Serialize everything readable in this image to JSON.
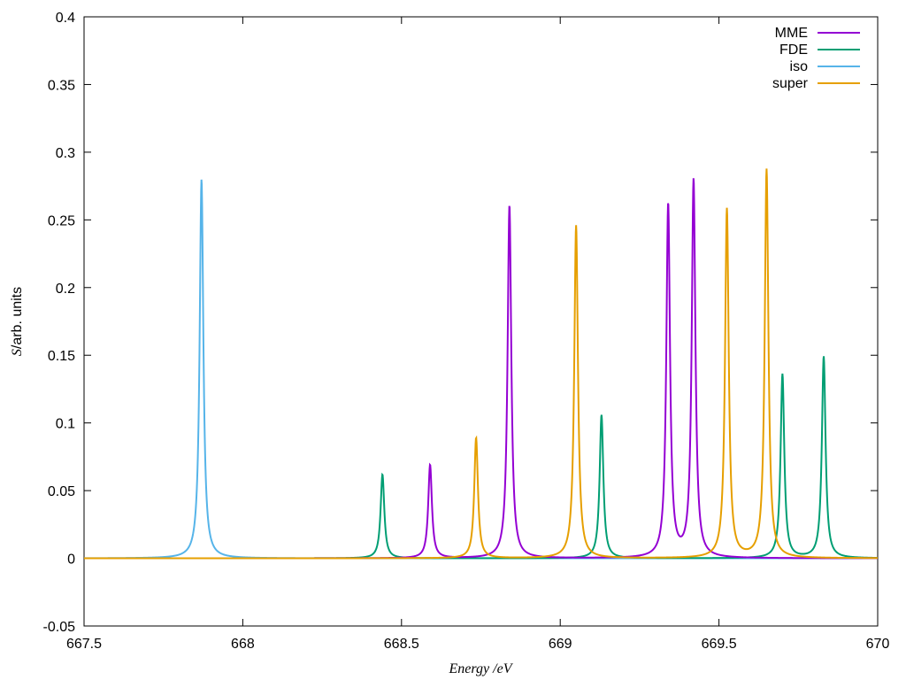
{
  "chart_data": {
    "type": "line",
    "title": "",
    "xlabel": "Energy /eV",
    "ylabel_symbol": "S",
    "ylabel_rest": "/arb. units",
    "xlim": [
      667.5,
      670
    ],
    "ylim": [
      -0.05,
      0.4
    ],
    "x_ticks": [
      "667.5",
      "668",
      "668.5",
      "669",
      "669.5",
      "670"
    ],
    "y_ticks": [
      "-0.05",
      "0",
      "0.05",
      "0.1",
      "0.15",
      "0.2",
      "0.25",
      "0.3",
      "0.35",
      "0.4"
    ],
    "legend_position": "top-right",
    "grid": false,
    "series": [
      {
        "name": "MME",
        "color": "#9400d3",
        "peaks": [
          {
            "x": 668.59,
            "y": 0.069
          },
          {
            "x": 668.84,
            "y": 0.261
          },
          {
            "x": 669.34,
            "y": 0.261
          },
          {
            "x": 669.42,
            "y": 0.279
          }
        ]
      },
      {
        "name": "FDE",
        "color": "#009e73",
        "peaks": [
          {
            "x": 668.44,
            "y": 0.062
          },
          {
            "x": 669.13,
            "y": 0.106
          },
          {
            "x": 669.7,
            "y": 0.136
          },
          {
            "x": 669.83,
            "y": 0.149
          }
        ]
      },
      {
        "name": "iso",
        "color": "#56b4e9",
        "peaks": [
          {
            "x": 667.87,
            "y": 0.28
          }
        ]
      },
      {
        "name": "super",
        "color": "#e69f00",
        "peaks": [
          {
            "x": 668.735,
            "y": 0.089
          },
          {
            "x": 669.05,
            "y": 0.246
          },
          {
            "x": 669.525,
            "y": 0.258
          },
          {
            "x": 669.65,
            "y": 0.287
          }
        ]
      }
    ]
  }
}
